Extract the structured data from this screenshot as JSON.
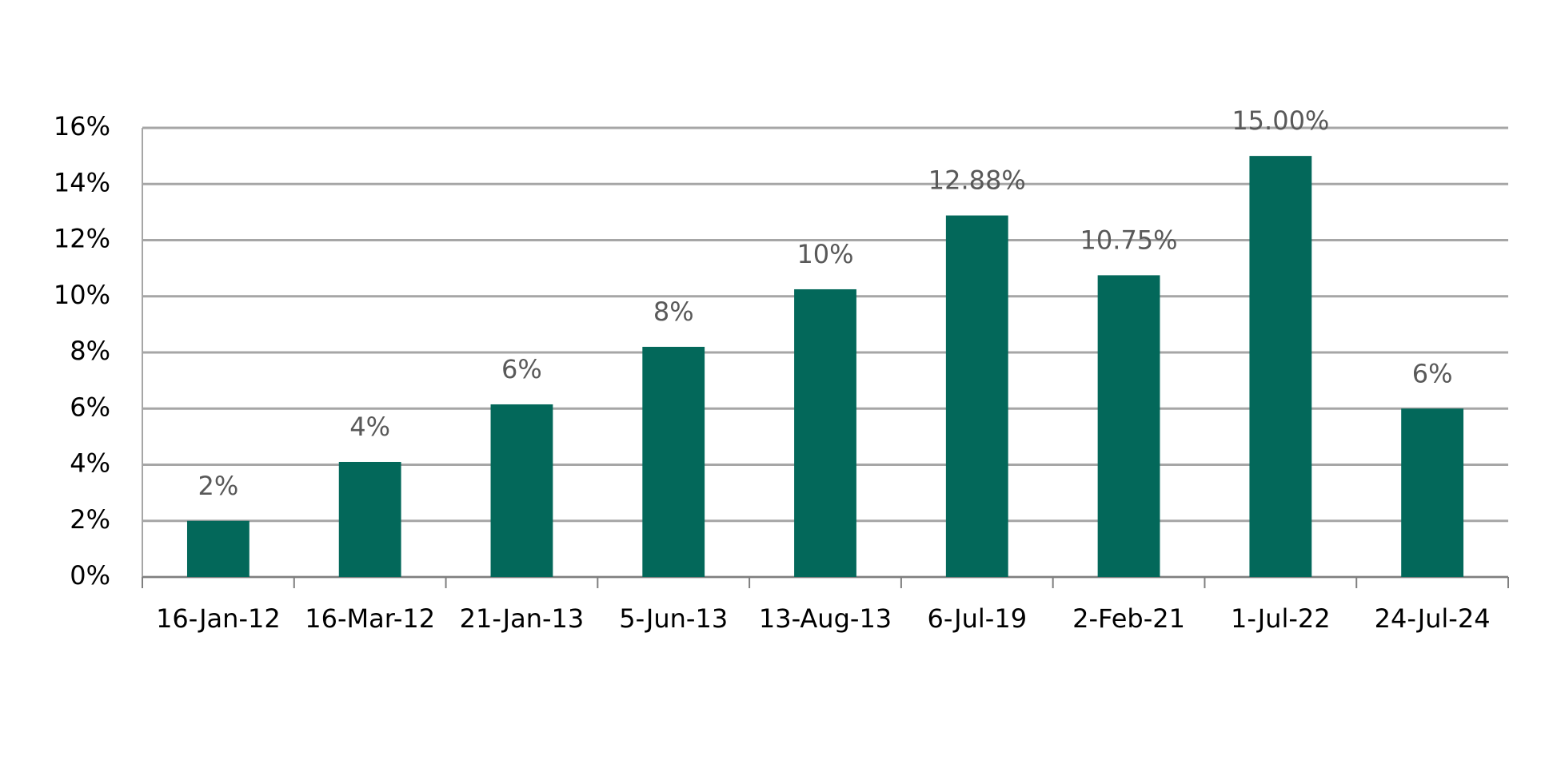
{
  "chart_data": {
    "type": "bar",
    "categories": [
      "16-Jan-12",
      "16-Mar-12",
      "21-Jan-13",
      "5-Jun-13",
      "13-Aug-13",
      "6-Jul-19",
      "2-Feb-21",
      "1-Jul-22",
      "24-Jul-24"
    ],
    "values": [
      2,
      4.1,
      6.15,
      8.2,
      10.25,
      12.88,
      10.75,
      15,
      6
    ],
    "value_labels": [
      "2%",
      "4%",
      "6%",
      "8%",
      "10%",
      "12.88%",
      "10.75%",
      "15.00%",
      "6%"
    ],
    "color": "#03685a",
    "ylim": [
      0,
      16
    ],
    "yticks": [
      {
        "value": 0,
        "label": "0%"
      },
      {
        "value": 2,
        "label": "2%"
      },
      {
        "value": 4,
        "label": "4%"
      },
      {
        "value": 6,
        "label": "6%"
      },
      {
        "value": 8,
        "label": "8%"
      },
      {
        "value": 10,
        "label": "10%"
      },
      {
        "value": 12,
        "label": "12%"
      },
      {
        "value": 14,
        "label": "14%"
      },
      {
        "value": 16,
        "label": "16%"
      }
    ],
    "grid": true
  }
}
